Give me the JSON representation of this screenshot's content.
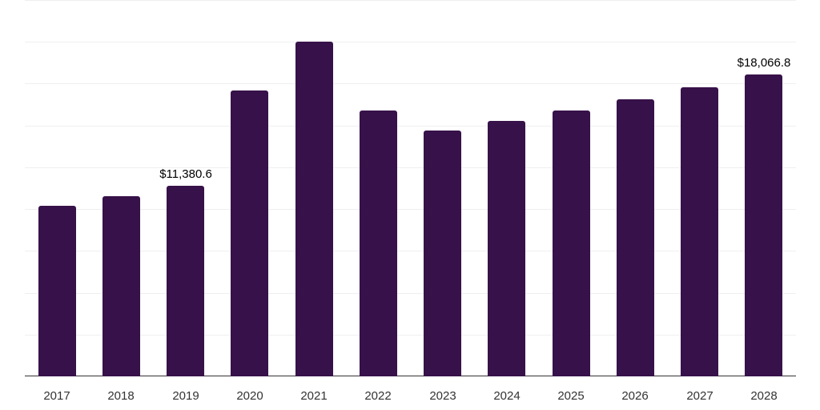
{
  "chart_data": {
    "type": "bar",
    "title": "",
    "xlabel": "",
    "ylabel": "",
    "categories": [
      "2017",
      "2018",
      "2019",
      "2020",
      "2021",
      "2022",
      "2023",
      "2024",
      "2025",
      "2026",
      "2027",
      "2028"
    ],
    "values": [
      10210,
      10790,
      11380.6,
      17070,
      20000,
      15870,
      14720,
      15250,
      15870,
      16540,
      17260,
      18066.8
    ],
    "data_labels": [
      {
        "index": 2,
        "text": "$11,380.6"
      },
      {
        "index": 11,
        "text": "$18,066.8"
      }
    ],
    "ylim": [
      0,
      22500
    ],
    "gridlines": [
      0,
      2500,
      5000,
      7500,
      10000,
      12500,
      15000,
      17500,
      20000,
      22500
    ],
    "grid": true,
    "y_tick_labels_visible": false,
    "legend": null,
    "bar_color": "#371149"
  }
}
